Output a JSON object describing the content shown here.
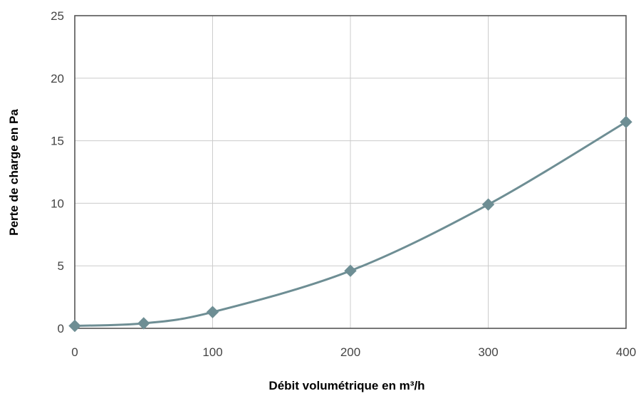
{
  "chart_data": {
    "type": "line",
    "title": "",
    "xlabel": "Débit volumétrique en m³/h",
    "ylabel": "Perte de charge en Pa",
    "xlim": [
      0,
      400
    ],
    "ylim": [
      0,
      25
    ],
    "xticks": [
      "0",
      "100",
      "200",
      "300",
      "400"
    ],
    "yticks": [
      "0",
      "5",
      "10",
      "15",
      "20",
      "25"
    ],
    "grid": true,
    "legend": "none",
    "series": [
      {
        "marker": "diamond",
        "smooth": true,
        "x": [
          0,
          50,
          100,
          200,
          300,
          400
        ],
        "y": [
          0.2,
          0.4,
          1.3,
          4.6,
          9.9,
          16.5
        ]
      }
    ]
  },
  "colors": {
    "series": "#6e8e94",
    "grid": "#cccccc",
    "frame": "#555555"
  }
}
